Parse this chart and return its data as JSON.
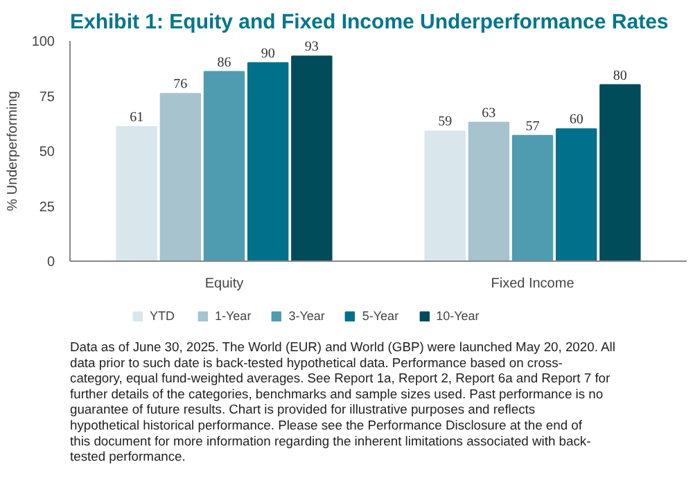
{
  "chart_data": {
    "type": "bar",
    "title": "Exhibit 1: Equity and Fixed Income Underperformance Rates",
    "ylabel": "% Underperforming",
    "categories": [
      "Equity",
      "Fixed Income"
    ],
    "series": [
      {
        "name": "YTD",
        "color": "#d9e7ec",
        "values": [
          61,
          59
        ]
      },
      {
        "name": "1-Year",
        "color": "#a6c3ce",
        "values": [
          76,
          63
        ]
      },
      {
        "name": "3-Year",
        "color": "#4f9cb1",
        "values": [
          86,
          57
        ]
      },
      {
        "name": "5-Year",
        "color": "#00718b",
        "values": [
          90,
          60
        ]
      },
      {
        "name": "10-Year",
        "color": "#004c5b",
        "values": [
          93,
          80
        ]
      }
    ],
    "ylim": [
      0,
      100
    ],
    "yticks": [
      0,
      25,
      50,
      75,
      100
    ],
    "grid": false,
    "legend": "bottom",
    "data_labels": true,
    "annotations": [
      "Data as of June 30, 2025.  The World (EUR) and World (GBP) were launched May 20, 2020.  All data prior to such date is back-tested hypothetical data.  Performance based on cross-category, equal fund-weighted averages.  See Report 1a, Report 2, Report 6a and Report 7 for further details of the categories, benchmarks and sample sizes used.  Past performance is no guarantee of future results.  Chart is provided for illustrative purposes and reflects hypothetical historical performance.  Please see the Performance Disclosure at the end of this document for more information regarding the inherent limitations associated with back-tested performance."
    ]
  }
}
